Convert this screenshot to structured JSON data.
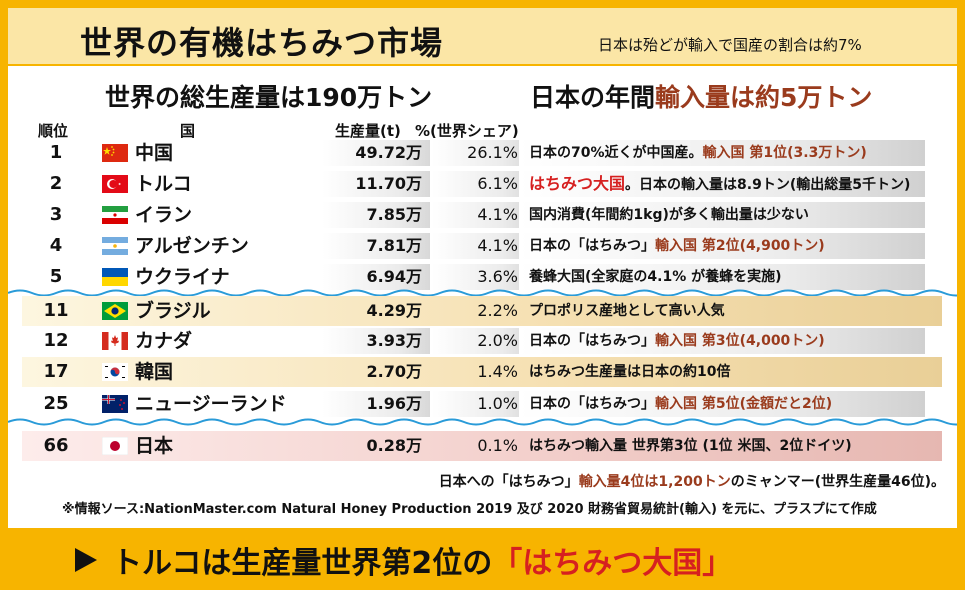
{
  "banner": {
    "title": "世界の有機はちみつ市場",
    "note": "日本は殆どが輸入で国産の割合は約7%"
  },
  "headlines": {
    "left": "世界の総生産量は190万トン",
    "right_prefix": "日本の年間",
    "right_accent": "輸入量は約5万トン"
  },
  "columns": {
    "rank": "順位",
    "country": "国",
    "production": "生産量(t)",
    "share": "%(世界シェア)"
  },
  "rows": [
    {
      "rank": "1",
      "country": "中国",
      "production": "49.72万",
      "share": "26.1%",
      "note_plain": "日本の70%近くが中国産。",
      "note_accent": "輸入国 第1位(3.3万トン)",
      "flag": "china-flag-icon"
    },
    {
      "rank": "2",
      "country": "トルコ",
      "production": "11.70万",
      "share": "6.1%",
      "note_red": "はちみつ大国",
      "note_plain": "。日本の輸入量は8.9トン(輸出総量5千トン)",
      "flag": "turkey-flag-icon"
    },
    {
      "rank": "3",
      "country": "イラン",
      "production": "7.85万",
      "share": "4.1%",
      "note_plain": "国内消費(年間約1kg)が多く輸出量は少ない",
      "flag": "iran-flag-icon"
    },
    {
      "rank": "4",
      "country": "アルゼンチン",
      "production": "7.81万",
      "share": "4.1%",
      "note_plain": "日本の「はちみつ」",
      "note_accent": "輸入国 第2位(4,900トン)",
      "flag": "argentina-flag-icon"
    },
    {
      "rank": "5",
      "country": "ウクライナ",
      "production": "6.94万",
      "share": "3.6%",
      "note_plain": "養蜂大国(全家庭の4.1% が養蜂を実施)",
      "flag": "ukraine-flag-icon"
    },
    {
      "rank": "11",
      "country": "ブラジル",
      "production": "4.29万",
      "share": "2.2%",
      "note_plain": "プロポリス産地として高い人気",
      "flag": "brazil-flag-icon"
    },
    {
      "rank": "12",
      "country": "カナダ",
      "production": "3.93万",
      "share": "2.0%",
      "note_plain": "日本の「はちみつ」",
      "note_accent": "輸入国 第3位(4,000トン)",
      "flag": "canada-flag-icon"
    },
    {
      "rank": "17",
      "country": "韓国",
      "production": "2.70万",
      "share": "1.4%",
      "note_plain": "はちみつ生産量は日本の約10倍",
      "flag": "korea-flag-icon"
    },
    {
      "rank": "25",
      "country": "ニュージーランド",
      "production": "1.96万",
      "share": "1.0%",
      "note_plain": "日本の「はちみつ」",
      "note_accent": "輸入国 第5位(金額だと2位)",
      "flag": "new-zealand-flag-icon"
    },
    {
      "rank": "66",
      "country": "日本",
      "production": "0.28万",
      "share": "0.1%",
      "note_plain": "はちみつ輸入量 世界第3位 (1位 米国、2位ドイツ)",
      "flag": "japan-flag-icon"
    }
  ],
  "footnotes": {
    "line1_prefix": "日本への「はちみつ」",
    "line1_accent": "輸入量4位は1,200トン",
    "line1_suffix": "のミャンマー(世界生産量46位)。",
    "line2": "※情報ソース:NationMaster.com Natural Honey Production 2019 及び 2020 財務省貿易統計(輸入) を元に、プラスプにて作成"
  },
  "bottom": {
    "text_prefix": "トルコは生産量世界第2位の",
    "text_red": "「はちみつ大国」"
  },
  "colors": {
    "frame": "#f7b400",
    "accent": "#9a3b1d",
    "red": "#d62020",
    "wave": "#2a9bd8"
  }
}
